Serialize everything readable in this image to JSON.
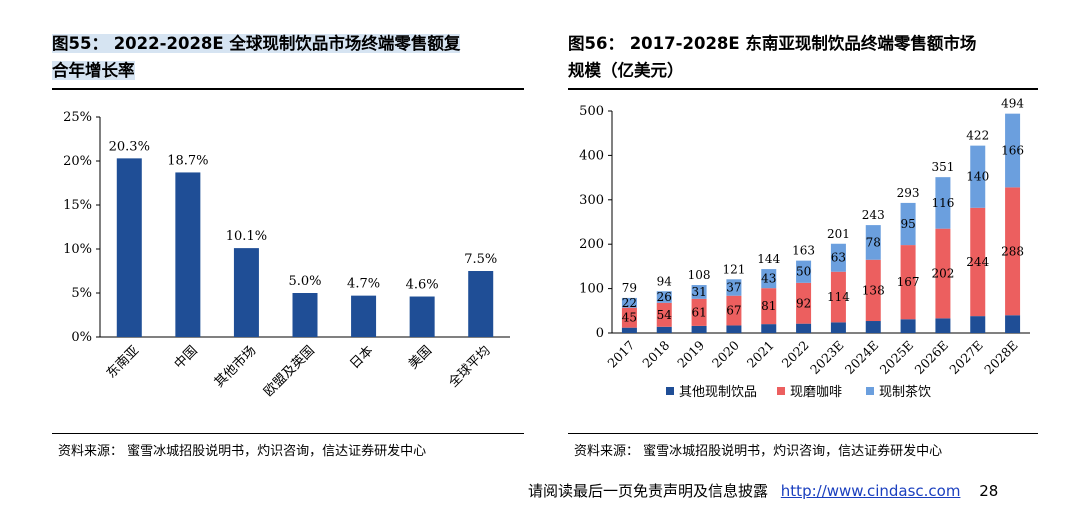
{
  "left_figure": {
    "title_line1": "图55： 2022-2028E 全球现制饮品市场终端零售额复",
    "title_line2": "合年增长率",
    "source": "资料来源： 蜜雪冰城招股说明书，灼识咨询，信达证券研发中心"
  },
  "right_figure": {
    "title_line1": "图56： 2017-2028E 东南亚现制饮品终端零售额市场",
    "title_line2": "规模（亿美元）",
    "source": "资料来源： 蜜雪冰城招股说明书，灼识咨询，信达证券研发中心"
  },
  "footer": {
    "disclaimer": "请阅读最后一页免责声明及信息披露",
    "url": "http://www.cindasc.com",
    "page": "28"
  },
  "chart_data": [
    {
      "type": "bar",
      "categories": [
        "东南亚",
        "中国",
        "其他市场",
        "欧盟及英国",
        "日本",
        "美国",
        "全球平均"
      ],
      "values": [
        20.3,
        18.7,
        10.1,
        5.0,
        4.7,
        4.6,
        7.5
      ],
      "data_labels": [
        "20.3%",
        "18.7%",
        "10.1%",
        "5.0%",
        "4.7%",
        "4.6%",
        "7.5%"
      ],
      "yticks": [
        "0%",
        "5%",
        "10%",
        "15%",
        "20%",
        "25%"
      ],
      "ylim": [
        0,
        25
      ],
      "color": "#1f4e96"
    },
    {
      "type": "bar",
      "stacked": true,
      "categories": [
        "2017",
        "2018",
        "2019",
        "2020",
        "2021",
        "2022",
        "2023E",
        "2024E",
        "2025E",
        "2026E",
        "2027E",
        "2028E"
      ],
      "series": [
        {
          "name": "其他现制饮品",
          "values": [
            12,
            14,
            16,
            17,
            20,
            21,
            24,
            27,
            31,
            33,
            38,
            40
          ],
          "color": "#1f4e96"
        },
        {
          "name": "现磨咖啡",
          "values": [
            45,
            54,
            61,
            67,
            81,
            92,
            114,
            138,
            167,
            202,
            244,
            288
          ],
          "color": "#ec5f5f"
        },
        {
          "name": "现制茶饮",
          "values": [
            22,
            26,
            31,
            37,
            43,
            50,
            63,
            78,
            95,
            116,
            140,
            166
          ],
          "color": "#6b9fde"
        }
      ],
      "totals": [
        79,
        94,
        108,
        121,
        144,
        163,
        201,
        243,
        293,
        351,
        422,
        494
      ],
      "yticks": [
        "0",
        "100",
        "200",
        "300",
        "400",
        "500"
      ],
      "ylim": [
        0,
        500
      ],
      "legend_position": "bottom"
    }
  ]
}
